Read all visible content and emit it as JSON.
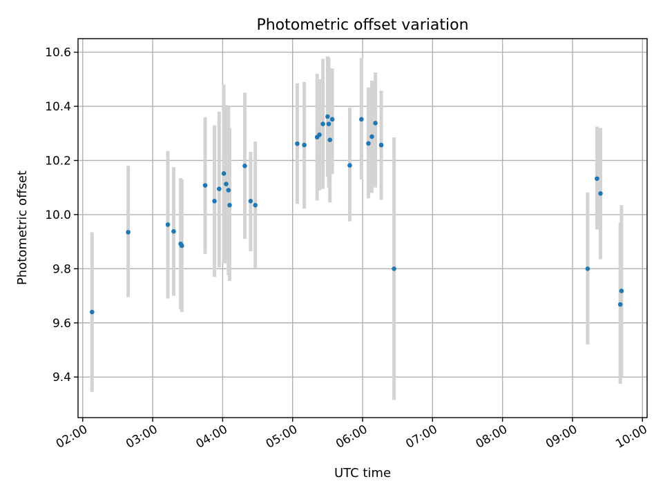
{
  "chart_data": {
    "type": "scatter",
    "title": "Photometric offset variation",
    "xlabel": "UTC time",
    "ylabel": "Photometric offset",
    "x_is_time": true,
    "xlim": [
      "01:56",
      "10:04"
    ],
    "ylim": [
      9.25,
      10.65
    ],
    "x_ticks": [
      "02:00",
      "03:00",
      "04:00",
      "05:00",
      "06:00",
      "07:00",
      "08:00",
      "09:00",
      "10:00"
    ],
    "y_ticks": [
      "9.4",
      "9.6",
      "9.8",
      "10.0",
      "10.2",
      "10.4",
      "10.6"
    ],
    "grid": true,
    "marker_color": "#1f77b4",
    "errorbar_color": "#d3d3d3",
    "series": [
      {
        "points": [
          {
            "t": "02:08",
            "y": 9.64,
            "lo": 9.345,
            "hi": 9.935
          },
          {
            "t": "02:39",
            "y": 9.935,
            "lo": 9.695,
            "hi": 10.18
          },
          {
            "t": "03:13",
            "y": 9.963,
            "lo": 9.69,
            "hi": 10.235
          },
          {
            "t": "03:18",
            "y": 9.938,
            "lo": 9.7,
            "hi": 10.175
          },
          {
            "t": "03:24",
            "y": 9.892,
            "lo": 9.65,
            "hi": 10.135
          },
          {
            "t": "03:25",
            "y": 9.885,
            "lo": 9.64,
            "hi": 10.13
          },
          {
            "t": "03:45",
            "y": 10.108,
            "lo": 9.855,
            "hi": 10.36
          },
          {
            "t": "03:53",
            "y": 10.05,
            "lo": 9.77,
            "hi": 10.33
          },
          {
            "t": "03:57",
            "y": 10.095,
            "lo": 9.805,
            "hi": 10.38
          },
          {
            "t": "04:01",
            "y": 10.152,
            "lo": 9.82,
            "hi": 10.48
          },
          {
            "t": "04:03",
            "y": 10.113,
            "lo": 9.82,
            "hi": 10.405
          },
          {
            "t": "04:05",
            "y": 10.09,
            "lo": 9.775,
            "hi": 10.4
          },
          {
            "t": "04:06",
            "y": 10.035,
            "lo": 9.755,
            "hi": 10.32
          },
          {
            "t": "04:19",
            "y": 10.18,
            "lo": 9.91,
            "hi": 10.45
          },
          {
            "t": "04:24",
            "y": 10.05,
            "lo": 9.865,
            "hi": 10.232
          },
          {
            "t": "04:28",
            "y": 10.035,
            "lo": 9.8,
            "hi": 10.27
          },
          {
            "t": "05:04",
            "y": 10.262,
            "lo": 10.04,
            "hi": 10.485
          },
          {
            "t": "05:10",
            "y": 10.257,
            "lo": 10.022,
            "hi": 10.49
          },
          {
            "t": "05:21",
            "y": 10.286,
            "lo": 10.052,
            "hi": 10.52
          },
          {
            "t": "05:23",
            "y": 10.295,
            "lo": 10.09,
            "hi": 10.5
          },
          {
            "t": "05:26",
            "y": 10.335,
            "lo": 10.095,
            "hi": 10.575
          },
          {
            "t": "05:30",
            "y": 10.362,
            "lo": 10.14,
            "hi": 10.585
          },
          {
            "t": "05:31",
            "y": 10.335,
            "lo": 10.1,
            "hi": 10.58
          },
          {
            "t": "05:32",
            "y": 10.276,
            "lo": 10.045,
            "hi": 10.505
          },
          {
            "t": "05:34",
            "y": 10.352,
            "lo": 10.15,
            "hi": 10.54
          },
          {
            "t": "05:49",
            "y": 10.182,
            "lo": 9.975,
            "hi": 10.395
          },
          {
            "t": "05:59",
            "y": 10.352,
            "lo": 10.13,
            "hi": 10.578
          },
          {
            "t": "06:05",
            "y": 10.263,
            "lo": 10.06,
            "hi": 10.47
          },
          {
            "t": "06:08",
            "y": 10.288,
            "lo": 10.08,
            "hi": 10.495
          },
          {
            "t": "06:11",
            "y": 10.338,
            "lo": 10.1,
            "hi": 10.525
          },
          {
            "t": "06:16",
            "y": 10.257,
            "lo": 10.055,
            "hi": 10.458
          },
          {
            "t": "06:27",
            "y": 9.8,
            "lo": 9.315,
            "hi": 10.285
          },
          {
            "t": "09:13",
            "y": 9.8,
            "lo": 9.52,
            "hi": 10.082
          },
          {
            "t": "09:21",
            "y": 10.133,
            "lo": 9.945,
            "hi": 10.325
          },
          {
            "t": "09:24",
            "y": 10.078,
            "lo": 9.835,
            "hi": 10.32
          },
          {
            "t": "09:41",
            "y": 9.668,
            "lo": 9.375,
            "hi": 9.97
          },
          {
            "t": "09:42",
            "y": 9.718,
            "lo": 9.4,
            "hi": 10.035
          }
        ]
      }
    ]
  }
}
